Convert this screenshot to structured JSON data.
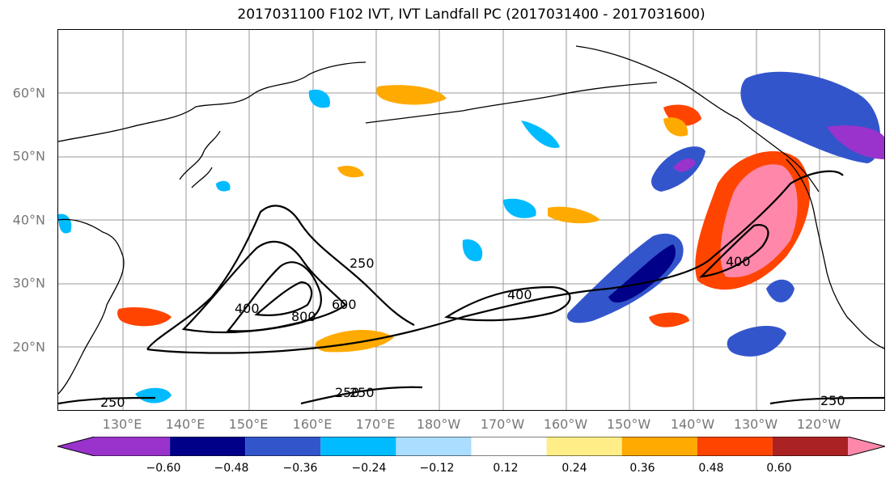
{
  "title": "2017031100 F102 IVT, IVT Landfall PC (2017031400 - 2017031600)",
  "lat_labels": [
    "60°N",
    "50°N",
    "40°N",
    "30°N",
    "20°N"
  ],
  "lon_labels": [
    "130°E",
    "140°E",
    "150°E",
    "160°E",
    "170°E",
    "180°W",
    "170°W",
    "160°W",
    "150°W",
    "140°W",
    "130°W",
    "120°W"
  ],
  "colorbar": {
    "colors": [
      "#9933CC",
      "#000088",
      "#3355CC",
      "#00BBFF",
      "#AADDFF",
      "#FFFFFF",
      "#FFEE88",
      "#FFAA00",
      "#FF4400",
      "#AA2222",
      "#FF88AA"
    ],
    "ticks": [
      "−0.60",
      "−0.48",
      "−0.36",
      "−0.24",
      "−0.12",
      "0.12",
      "0.24",
      "0.36",
      "0.48",
      "0.60"
    ],
    "extend": "both"
  },
  "contour_labels": [
    {
      "text": "250",
      "name": "ivt-contour-label-250-west"
    },
    {
      "text": "400",
      "name": "ivt-contour-label-400-west"
    },
    {
      "text": "800",
      "name": "ivt-contour-label-800"
    },
    {
      "text": "600",
      "name": "ivt-contour-label-600"
    },
    {
      "text": "250",
      "name": "ivt-contour-label-250-north"
    },
    {
      "text": "400",
      "name": "ivt-contour-label-400-central"
    },
    {
      "text": "400",
      "name": "ivt-contour-label-400-east"
    },
    {
      "text": "250",
      "name": "ivt-contour-label-250-southwest"
    },
    {
      "text": "250",
      "name": "ivt-contour-label-250-south"
    },
    {
      "text": "250",
      "name": "ivt-contour-label-250-southeast"
    }
  ],
  "map": {
    "projection": "cylindrical",
    "lon_range": [
      "120°E",
      "110°W"
    ],
    "lat_range": [
      "10°N",
      "70°N"
    ],
    "gridlines": true
  }
}
